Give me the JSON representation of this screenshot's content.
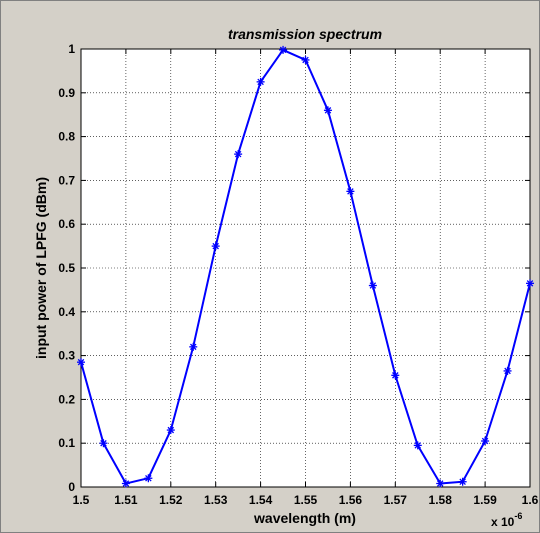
{
  "chart_data": {
    "type": "line",
    "title": "transmission spectrum",
    "xlabel": "wavelength (m)",
    "ylabel": "input power of LPFG (dBm)",
    "x_exponent_label": "x 10",
    "x_exponent_power": "-6",
    "xlim": [
      1.5,
      1.6
    ],
    "ylim": [
      0,
      1
    ],
    "xticks": [
      "1.5",
      "1.51",
      "1.52",
      "1.53",
      "1.54",
      "1.55",
      "1.56",
      "1.57",
      "1.58",
      "1.59",
      "1.6"
    ],
    "yticks": [
      "0",
      "0.1",
      "0.2",
      "0.3",
      "0.4",
      "0.5",
      "0.6",
      "0.7",
      "0.8",
      "0.9",
      "1"
    ],
    "grid": true,
    "series": [
      {
        "color": "#0000ff",
        "marker": "asterisk",
        "x": [
          1.5,
          1.505,
          1.51,
          1.515,
          1.52,
          1.525,
          1.53,
          1.535,
          1.54,
          1.545,
          1.55,
          1.555,
          1.56,
          1.565,
          1.57,
          1.575,
          1.58,
          1.585,
          1.59,
          1.595,
          1.6
        ],
        "y": [
          0.285,
          0.1,
          0.008,
          0.02,
          0.13,
          0.32,
          0.55,
          0.76,
          0.925,
          0.998,
          0.975,
          0.86,
          0.675,
          0.46,
          0.255,
          0.095,
          0.008,
          0.012,
          0.105,
          0.265,
          0.465
        ]
      }
    ]
  }
}
